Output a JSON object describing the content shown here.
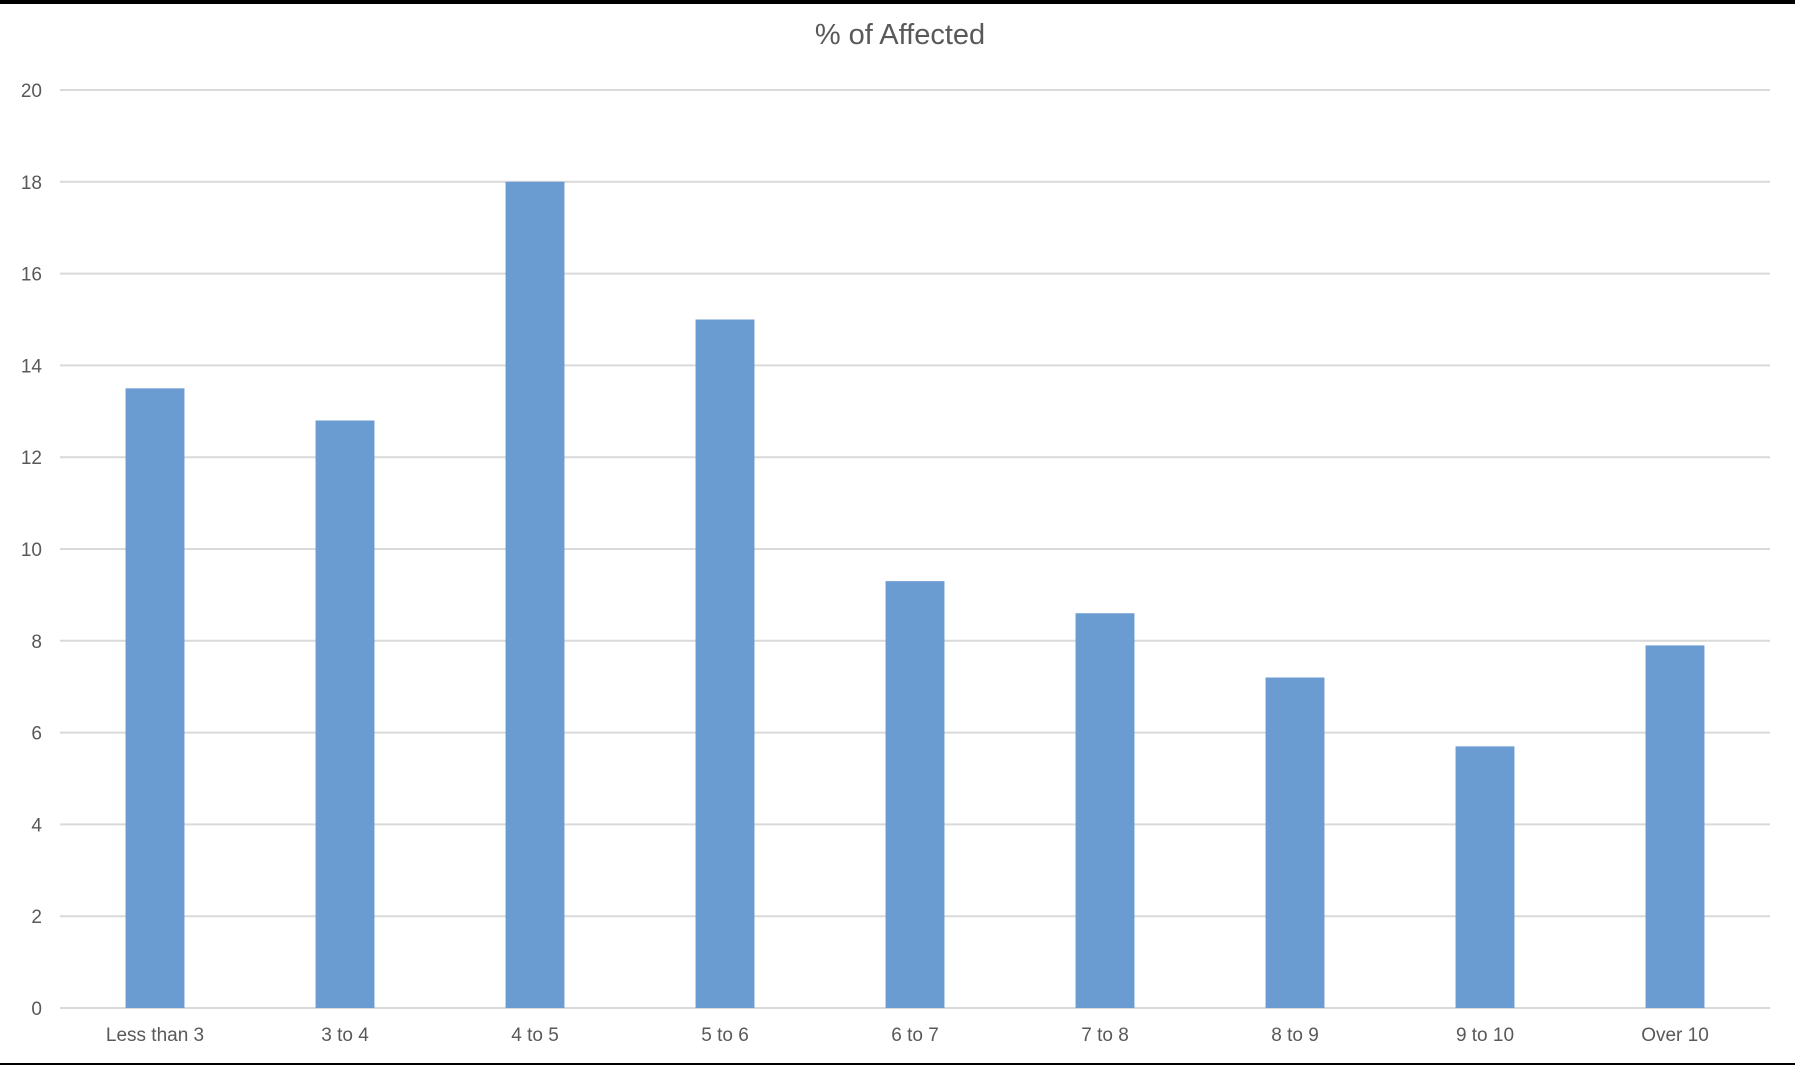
{
  "chart_data": {
    "type": "bar",
    "title": "% of Affected",
    "xlabel": "",
    "ylabel": "",
    "categories": [
      "Less than 3",
      "3 to 4",
      "4 to 5",
      "5 to 6",
      "6 to 7",
      "7 to 8",
      "8 to 9",
      "9 to 10",
      "Over 10"
    ],
    "values": [
      13.5,
      12.8,
      18.0,
      15.0,
      9.3,
      8.6,
      7.2,
      5.7,
      7.9
    ],
    "ylim": [
      0,
      20
    ],
    "yticks": [
      0,
      2,
      4,
      6,
      8,
      10,
      12,
      14,
      16,
      18,
      20
    ],
    "grid": true,
    "legend": "none",
    "bar_color": "#6a9bd1"
  }
}
